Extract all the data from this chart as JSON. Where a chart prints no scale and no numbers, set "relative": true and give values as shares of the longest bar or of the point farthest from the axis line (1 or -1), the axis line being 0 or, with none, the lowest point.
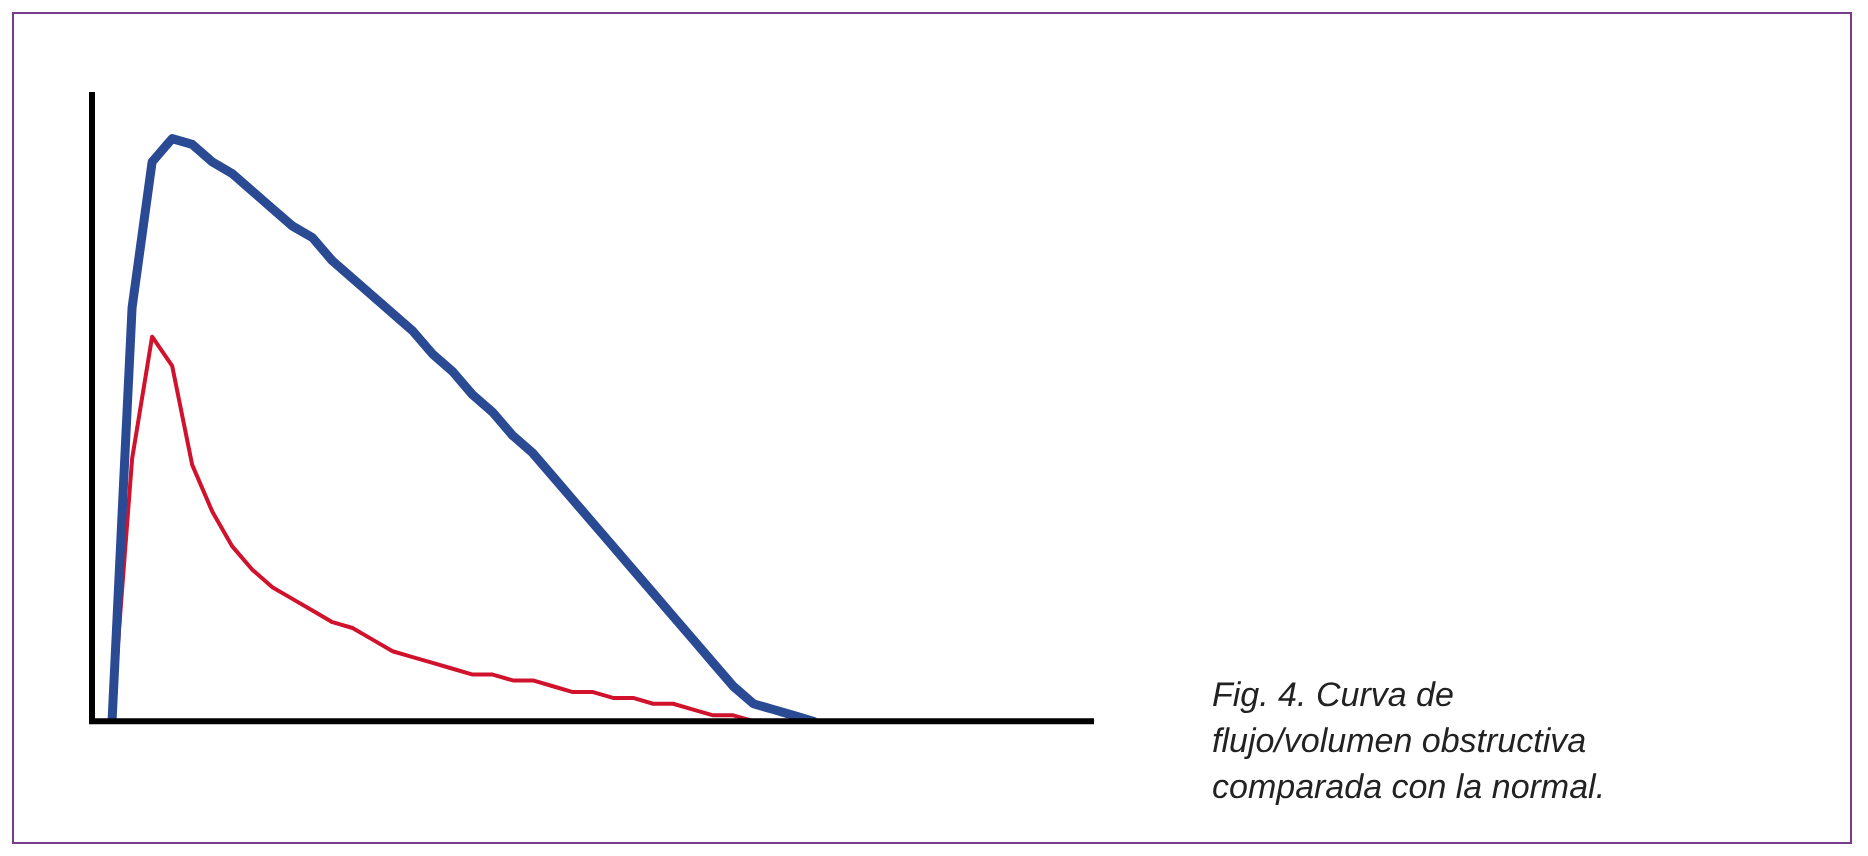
{
  "chart_data": {
    "type": "line",
    "relative": true,
    "legend": false,
    "marker": "none",
    "line_style": "solid",
    "categories": [
      null,
      null,
      null,
      null,
      null,
      null,
      null,
      null,
      null,
      null,
      null,
      null,
      null,
      null,
      null,
      null,
      null,
      null,
      null,
      null,
      null,
      null,
      null,
      null,
      null,
      null,
      null,
      null,
      null,
      null,
      null,
      null,
      null,
      null,
      null,
      null,
      null,
      null,
      null,
      null,
      null,
      null,
      null,
      null,
      null,
      null,
      null,
      null,
      null,
      null,
      null
    ],
    "series": [
      {
        "color": "#2b4a94",
        "values": [
          null,
          0,
          0.71,
          0.96,
          1.0,
          0.99,
          0.96,
          0.94,
          0.91,
          0.88,
          0.85,
          0.83,
          0.79,
          0.76,
          0.73,
          0.7,
          0.67,
          0.63,
          0.6,
          0.56,
          0.53,
          0.49,
          0.46,
          0.42,
          0.38,
          0.34,
          0.3,
          0.26,
          0.22,
          0.18,
          0.14,
          0.1,
          0.06,
          0.03,
          0.02,
          0.01,
          0,
          null,
          null,
          null,
          null,
          null,
          null,
          null,
          null,
          null,
          null,
          null,
          null,
          null,
          null
        ]
      },
      {
        "color": "#d0122c",
        "values": [
          null,
          0,
          0.45,
          0.66,
          0.61,
          0.44,
          0.36,
          0.3,
          0.26,
          0.23,
          0.21,
          0.19,
          0.17,
          0.16,
          0.14,
          0.12,
          0.11,
          0.1,
          0.09,
          0.08,
          0.08,
          0.07,
          0.07,
          0.06,
          0.05,
          0.05,
          0.04,
          0.04,
          0.03,
          0.03,
          0.02,
          0.01,
          0.01,
          0,
          0,
          null,
          null,
          null,
          null,
          null,
          null,
          null,
          null,
          null,
          null,
          null,
          null,
          null,
          null,
          null,
          null
        ]
      }
    ],
    "annotations": [
      "Fig. 4. Curva de flujo/volumen obstructiva comparada con la normal."
    ]
  }
}
